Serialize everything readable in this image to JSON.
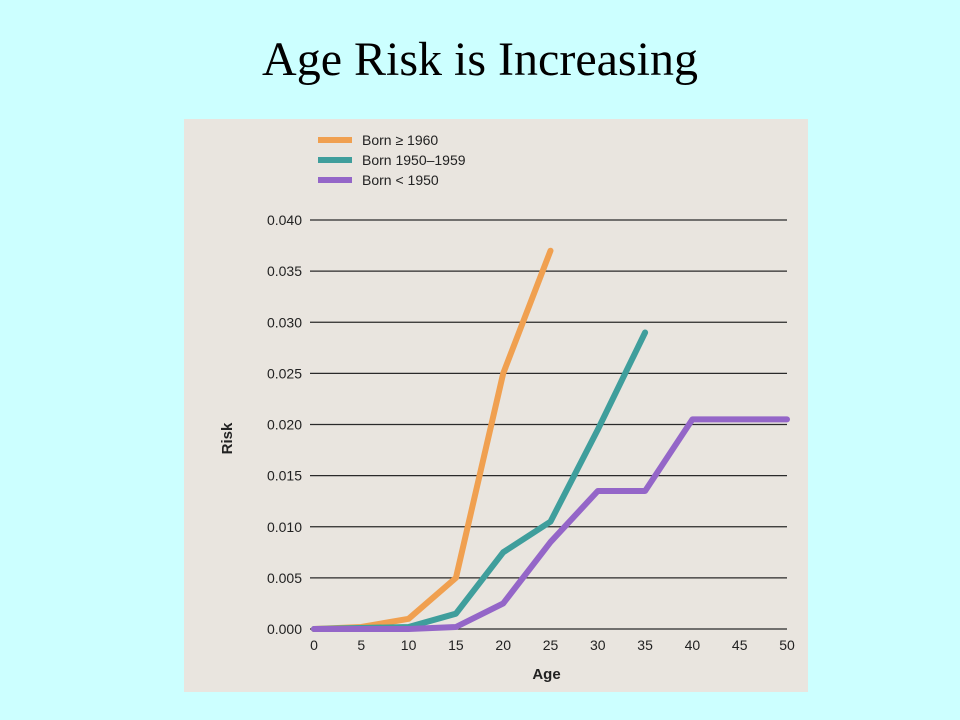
{
  "slide": {
    "title": "Age Risk is Increasing"
  },
  "chart_data": {
    "type": "line",
    "xlabel": "Age",
    "ylabel": "Risk",
    "xlim": [
      0,
      50
    ],
    "ylim": [
      0,
      0.04
    ],
    "x_ticks": [
      "0",
      "5",
      "10",
      "15",
      "20",
      "25",
      "30",
      "35",
      "40",
      "45",
      "50"
    ],
    "x_tick_values": [
      0,
      5,
      10,
      15,
      20,
      25,
      30,
      35,
      40,
      45,
      50
    ],
    "y_ticks": [
      "0.000",
      "0.005",
      "0.010",
      "0.015",
      "0.020",
      "0.025",
      "0.030",
      "0.035",
      "0.040"
    ],
    "y_tick_values": [
      0,
      0.005,
      0.01,
      0.015,
      0.02,
      0.025,
      0.03,
      0.035,
      0.04
    ],
    "grid": "horizontal",
    "legend_position": "top-left",
    "series": [
      {
        "name": "Born ≥ 1960",
        "color": "#f0a050",
        "x": [
          0,
          5,
          10,
          15,
          20,
          25
        ],
        "y": [
          0.0,
          0.0002,
          0.001,
          0.005,
          0.025,
          0.037
        ]
      },
      {
        "name": "Born 1950–1959",
        "color": "#3f9e9c",
        "x": [
          0,
          10,
          15,
          20,
          25,
          30,
          35
        ],
        "y": [
          0.0,
          0.0002,
          0.0015,
          0.0075,
          0.0105,
          0.0195,
          0.029
        ]
      },
      {
        "name": "Born < 1950",
        "color": "#9466c8",
        "x": [
          0,
          10,
          15,
          20,
          25,
          30,
          35,
          40,
          50
        ],
        "y": [
          0.0,
          0.0,
          0.0002,
          0.0025,
          0.0085,
          0.0135,
          0.0135,
          0.0205,
          0.0205
        ]
      }
    ]
  }
}
